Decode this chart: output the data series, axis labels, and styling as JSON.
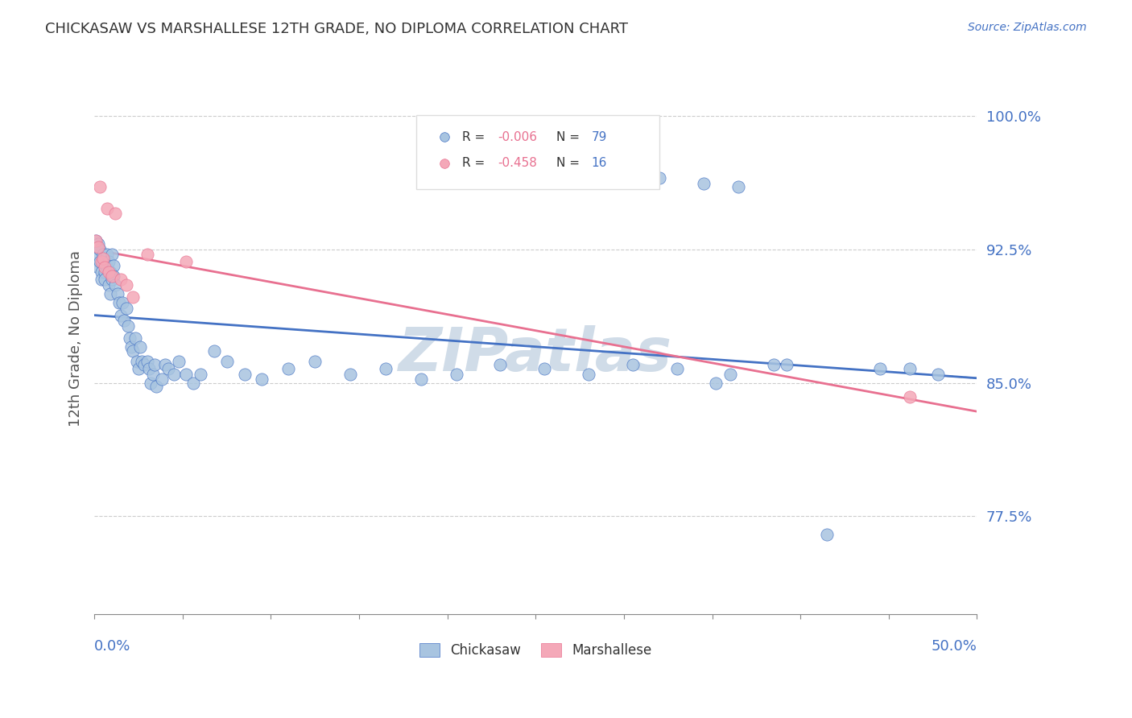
{
  "title": "CHICKASAW VS MARSHALLESE 12TH GRADE, NO DIPLOMA CORRELATION CHART",
  "source": "Source: ZipAtlas.com",
  "ylabel": "12th Grade, No Diploma",
  "ytick_labels": [
    "77.5%",
    "85.0%",
    "92.5%",
    "100.0%"
  ],
  "ytick_values": [
    0.775,
    0.85,
    0.925,
    1.0
  ],
  "xlim": [
    0.0,
    0.5
  ],
  "ylim": [
    0.72,
    1.03
  ],
  "chickasaw_color": "#a8c4e0",
  "marshallese_color": "#f4a8b8",
  "trendline_blue": "#4472c4",
  "trendline_pink": "#e87090",
  "trendline_gray": "#aaaaaa",
  "axis_label_color": "#4472c4",
  "title_color": "#333333",
  "watermark_color": "#d0dce8",
  "chickasaw_x": [
    0.001,
    0.001,
    0.002,
    0.002,
    0.003,
    0.003,
    0.004,
    0.004,
    0.005,
    0.005,
    0.006,
    0.006,
    0.007,
    0.007,
    0.008,
    0.008,
    0.009,
    0.009,
    0.01,
    0.01,
    0.011,
    0.011,
    0.012,
    0.013,
    0.014,
    0.015,
    0.016,
    0.017,
    0.018,
    0.019,
    0.02,
    0.021,
    0.022,
    0.023,
    0.024,
    0.025,
    0.026,
    0.027,
    0.028,
    0.03,
    0.031,
    0.032,
    0.033,
    0.034,
    0.035,
    0.038,
    0.04,
    0.042,
    0.045,
    0.048,
    0.052,
    0.056,
    0.06,
    0.068,
    0.075,
    0.085,
    0.095,
    0.11,
    0.125,
    0.145,
    0.165,
    0.185,
    0.205,
    0.23,
    0.255,
    0.28,
    0.305,
    0.33,
    0.36,
    0.385,
    0.415,
    0.445,
    0.345,
    0.365,
    0.32,
    0.462,
    0.478,
    0.392,
    0.352
  ],
  "chickasaw_y": [
    0.93,
    0.92,
    0.928,
    0.915,
    0.925,
    0.918,
    0.912,
    0.908,
    0.922,
    0.918,
    0.912,
    0.908,
    0.922,
    0.915,
    0.905,
    0.918,
    0.912,
    0.9,
    0.922,
    0.908,
    0.916,
    0.91,
    0.905,
    0.9,
    0.895,
    0.888,
    0.895,
    0.885,
    0.892,
    0.882,
    0.875,
    0.87,
    0.868,
    0.875,
    0.862,
    0.858,
    0.87,
    0.862,
    0.86,
    0.862,
    0.858,
    0.85,
    0.855,
    0.86,
    0.848,
    0.852,
    0.86,
    0.858,
    0.855,
    0.862,
    0.855,
    0.85,
    0.855,
    0.868,
    0.862,
    0.855,
    0.852,
    0.858,
    0.862,
    0.855,
    0.858,
    0.852,
    0.855,
    0.86,
    0.858,
    0.855,
    0.86,
    0.858,
    0.855,
    0.86,
    0.765,
    0.858,
    0.962,
    0.96,
    0.965,
    0.858,
    0.855,
    0.86,
    0.85
  ],
  "marshallese_x": [
    0.001,
    0.002,
    0.003,
    0.004,
    0.005,
    0.006,
    0.007,
    0.008,
    0.01,
    0.012,
    0.015,
    0.018,
    0.022,
    0.03,
    0.052,
    0.462
  ],
  "marshallese_y": [
    0.93,
    0.926,
    0.96,
    0.918,
    0.92,
    0.915,
    0.948,
    0.912,
    0.91,
    0.945,
    0.908,
    0.905,
    0.898,
    0.922,
    0.918,
    0.842
  ]
}
